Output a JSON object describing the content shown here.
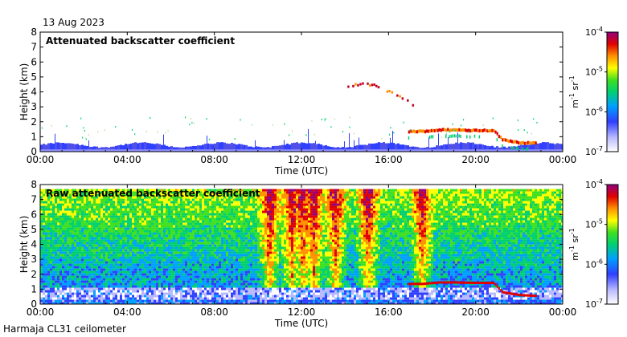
{
  "date_label": "13 Aug 2023",
  "footer_label": "Harmaja CL31 ceilometer",
  "chart_data": [
    {
      "type": "heatmap",
      "title": "Attenuated backscatter coefficient",
      "xlabel": "Time (UTC)",
      "ylabel": "Height (km)",
      "x_ticks": [
        "00:00",
        "04:00",
        "08:00",
        "12:00",
        "16:00",
        "20:00",
        "00:00"
      ],
      "x_tick_hours": [
        0,
        4,
        8,
        12,
        16,
        20,
        24
      ],
      "xlim_hours": [
        0,
        24
      ],
      "y_ticks": [
        "0",
        "1",
        "2",
        "3",
        "4",
        "5",
        "6",
        "7",
        "8"
      ],
      "y_tick_values": [
        0,
        1,
        2,
        3,
        4,
        5,
        6,
        7,
        8
      ],
      "ylim_km": [
        0,
        8
      ],
      "colorbar": {
        "scale": "log",
        "range": [
          1e-07,
          0.0001
        ],
        "tick_labels": [
          {
            "base": "10",
            "exp": "-4"
          },
          {
            "base": "10",
            "exp": "-5"
          },
          {
            "base": "10",
            "exp": "-6"
          },
          {
            "base": "10",
            "exp": "-7"
          }
        ],
        "tick_exponents": [
          -4,
          -5,
          -6,
          -7
        ],
        "unit_a": "m",
        "unit_a_exp": "-1",
        "unit_b": "sr",
        "unit_b_exp": "-1"
      },
      "features": {
        "boundary_layer_top_km": 0.4,
        "cloud_layer": [
          {
            "t": 16.9,
            "h": 1.35
          },
          {
            "t": 17.5,
            "h": 1.35
          },
          {
            "t": 18.3,
            "h": 1.45
          },
          {
            "t": 19.0,
            "h": 1.45
          },
          {
            "t": 20.0,
            "h": 1.42
          },
          {
            "t": 20.8,
            "h": 1.42
          },
          {
            "t": 21.2,
            "h": 0.8
          },
          {
            "t": 22.0,
            "h": 0.6
          },
          {
            "t": 22.8,
            "h": 0.55
          }
        ],
        "elevated_layer": [
          {
            "t": 14.0,
            "h": 4.5
          },
          {
            "t": 15.0,
            "h": 4.6
          },
          {
            "t": 15.5,
            "h": 4.4
          },
          {
            "t": 16.0,
            "h": 4.1
          },
          {
            "t": 16.6,
            "h": 3.6
          },
          {
            "t": 17.2,
            "h": 3.2
          }
        ]
      }
    },
    {
      "type": "heatmap",
      "title": "Raw attenuated backscatter coefficient",
      "xlabel": "Time (UTC)",
      "ylabel": "Height (km)",
      "x_ticks": [
        "00:00",
        "04:00",
        "08:00",
        "12:00",
        "16:00",
        "20:00",
        "00:00"
      ],
      "x_tick_hours": [
        0,
        4,
        8,
        12,
        16,
        20,
        24
      ],
      "xlim_hours": [
        0,
        24
      ],
      "y_ticks": [
        "0",
        "1",
        "2",
        "3",
        "4",
        "5",
        "6",
        "7",
        "8"
      ],
      "y_tick_values": [
        0,
        1,
        2,
        3,
        4,
        5,
        6,
        7,
        8
      ],
      "ylim_km": [
        0,
        8
      ],
      "colorbar": {
        "scale": "log",
        "range": [
          1e-07,
          0.0001
        ],
        "tick_labels": [
          {
            "base": "10",
            "exp": "-4"
          },
          {
            "base": "10",
            "exp": "-5"
          },
          {
            "base": "10",
            "exp": "-6"
          },
          {
            "base": "10",
            "exp": "-7"
          }
        ],
        "tick_exponents": [
          -4,
          -5,
          -6,
          -7
        ],
        "unit_a": "m",
        "unit_a_exp": "-1",
        "unit_b": "sr",
        "unit_b_exp": "-1"
      },
      "features": {
        "noisy_column_hours": [
          10.5,
          11.5,
          12.0,
          12.5,
          13.5,
          15.0,
          17.5
        ],
        "max_height_km": 7.7
      }
    }
  ]
}
